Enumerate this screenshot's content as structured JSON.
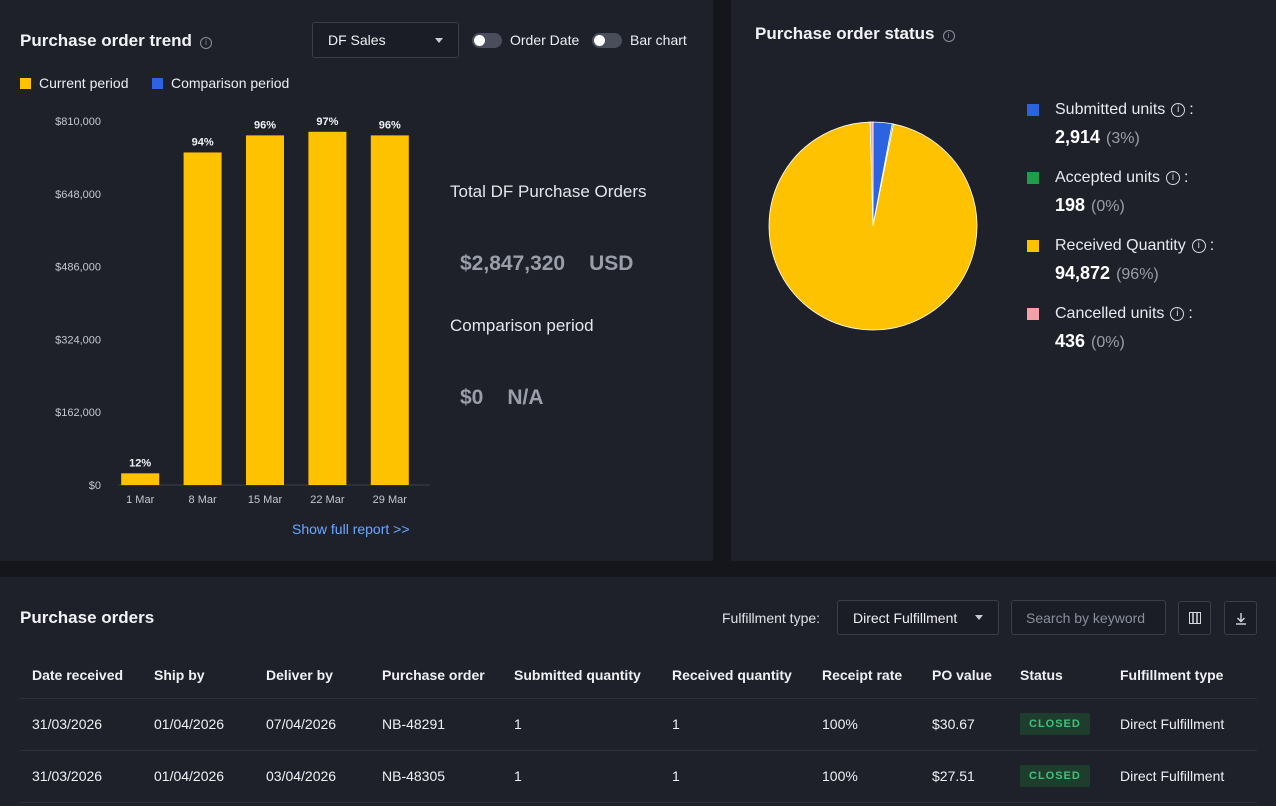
{
  "trend": {
    "title": "Purchase order trend",
    "dropdown_value": "DF Sales",
    "toggle_order_date": "Order Date",
    "toggle_bar_chart": "Bar chart",
    "legend_current": "Current period",
    "legend_comparison": "Comparison period",
    "color_current": "#ffc200",
    "color_comparison": "#2b63e0",
    "show_full_report": "Show full report >>",
    "total_label": "Total DF Purchase Orders",
    "total_value": "$2,847,320",
    "total_currency": "USD",
    "comparison_label": "Comparison period",
    "comparison_value": "$0",
    "comparison_currency": "N/A"
  },
  "chart_data": {
    "type": "bar",
    "categories": [
      "1 Mar",
      "8 Mar",
      "15 Mar",
      "22 Mar",
      "29 Mar"
    ],
    "values": [
      26000,
      740000,
      778000,
      786000,
      778000
    ],
    "bar_labels": [
      "12%",
      "94%",
      "96%",
      "97%",
      "96%"
    ],
    "yticks": [
      0,
      162000,
      324000,
      486000,
      648000,
      810000
    ],
    "ytick_labels": [
      "$0",
      "$162,000",
      "$324,000",
      "$486,000",
      "$648,000",
      "$810,000"
    ],
    "ylim": [
      0,
      810000
    ],
    "title": "",
    "xlabel": "",
    "ylabel": ""
  },
  "status": {
    "title": "Purchase order status",
    "items": [
      {
        "label": "Submitted units",
        "value": "2,914",
        "pct": "(3%)",
        "color": "#2b63e0",
        "share": 2914
      },
      {
        "label": "Accepted units",
        "value": "198",
        "pct": "(0%)",
        "color": "#1e9e4a",
        "share": 198
      },
      {
        "label": "Received Quantity",
        "value": "94,872",
        "pct": "(96%)",
        "color": "#ffc200",
        "share": 94872
      },
      {
        "label": "Cancelled units",
        "value": "436",
        "pct": "(0%)",
        "color": "#f4a0a8",
        "share": 436
      }
    ]
  },
  "orders": {
    "title": "Purchase orders",
    "fulfillment_label": "Fulfillment type:",
    "fulfillment_value": "Direct Fulfillment",
    "search_placeholder": "Search by keyword",
    "columns": [
      "Date received",
      "Ship by",
      "Deliver by",
      "Purchase order",
      "Submitted quantity",
      "Received quantity",
      "Receipt rate",
      "PO value",
      "Status",
      "Fulfillment type"
    ],
    "rows": [
      [
        "31/03/2026",
        "01/04/2026",
        "07/04/2026",
        "NB-48291",
        "1",
        "1",
        "100%",
        "$30.67",
        "CLOSED",
        "Direct Fulfillment"
      ],
      [
        "31/03/2026",
        "01/04/2026",
        "03/04/2026",
        "NB-48305",
        "1",
        "1",
        "100%",
        "$27.51",
        "CLOSED",
        "Direct Fulfillment"
      ]
    ]
  }
}
